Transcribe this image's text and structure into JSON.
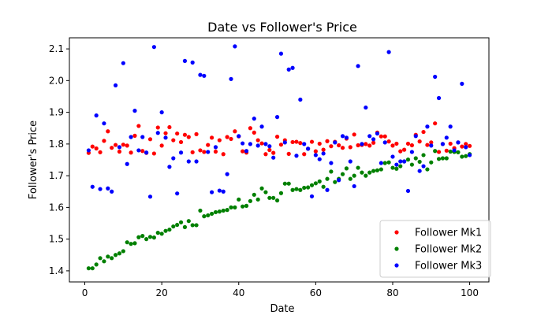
{
  "chart_data": {
    "type": "scatter",
    "title": "Date vs Follower's Price",
    "xlabel": "Date",
    "ylabel": "Follower's Price",
    "xlim": [
      -4,
      105
    ],
    "ylim": [
      1.365,
      2.135
    ],
    "xticks": [
      0,
      20,
      40,
      60,
      80,
      100
    ],
    "yticks": [
      1.4,
      1.5,
      1.6,
      1.7,
      1.8,
      1.9,
      2.0,
      2.1
    ],
    "ytick_labels": [
      "1.4",
      "1.5",
      "1.6",
      "1.7",
      "1.8",
      "1.9",
      "2.0",
      "2.1"
    ],
    "grid": false,
    "legend": "bottom-right",
    "x": [
      1,
      2,
      3,
      4,
      5,
      6,
      7,
      8,
      9,
      10,
      11,
      12,
      13,
      14,
      15,
      16,
      17,
      18,
      19,
      20,
      21,
      22,
      23,
      24,
      25,
      26,
      27,
      28,
      29,
      30,
      31,
      32,
      33,
      34,
      35,
      36,
      37,
      38,
      39,
      40,
      41,
      42,
      43,
      44,
      45,
      46,
      47,
      48,
      49,
      50,
      51,
      52,
      53,
      54,
      55,
      56,
      57,
      58,
      59,
      60,
      61,
      62,
      63,
      64,
      65,
      66,
      67,
      68,
      69,
      70,
      71,
      72,
      73,
      74,
      75,
      76,
      77,
      78,
      79,
      80,
      81,
      82,
      83,
      84,
      85,
      86,
      87,
      88,
      89,
      90,
      91,
      92,
      93,
      94,
      95,
      96,
      97,
      98,
      99,
      100
    ],
    "series": [
      {
        "name": "Follower Mk1",
        "color": "#ff0000",
        "values": [
          1.772,
          1.792,
          1.786,
          1.774,
          1.81,
          1.84,
          1.788,
          1.797,
          1.776,
          1.798,
          1.795,
          1.773,
          1.826,
          1.857,
          1.778,
          1.772,
          1.815,
          1.77,
          1.852,
          1.795,
          1.834,
          1.853,
          1.812,
          1.833,
          1.806,
          1.829,
          1.822,
          1.774,
          1.831,
          1.78,
          1.775,
          1.797,
          1.82,
          1.776,
          1.812,
          1.768,
          1.822,
          1.816,
          1.84,
          1.824,
          1.777,
          1.773,
          1.85,
          1.836,
          1.812,
          1.802,
          1.768,
          1.781,
          1.772,
          1.823,
          1.798,
          1.812,
          1.769,
          1.806,
          1.807,
          1.803,
          1.768,
          1.785,
          1.807,
          1.777,
          1.801,
          1.782,
          1.809,
          1.793,
          1.807,
          1.796,
          1.788,
          1.817,
          1.79,
          1.83,
          1.796,
          1.797,
          1.8,
          1.795,
          1.804,
          1.836,
          1.824,
          1.824,
          1.808,
          1.795,
          1.801,
          1.777,
          1.782,
          1.801,
          1.796,
          1.829,
          1.808,
          1.838,
          1.797,
          1.805,
          1.865,
          1.775,
          1.8,
          1.779,
          1.801,
          1.787,
          1.805,
          1.792,
          1.8,
          1.794
        ]
      },
      {
        "name": "Follower Mk2",
        "color": "#008000",
        "values": [
          1.408,
          1.408,
          1.42,
          1.44,
          1.43,
          1.445,
          1.44,
          1.45,
          1.455,
          1.462,
          1.49,
          1.485,
          1.487,
          1.506,
          1.51,
          1.5,
          1.507,
          1.505,
          1.52,
          1.517,
          1.526,
          1.53,
          1.54,
          1.545,
          1.553,
          1.538,
          1.557,
          1.544,
          1.544,
          1.59,
          1.572,
          1.575,
          1.58,
          1.585,
          1.587,
          1.59,
          1.592,
          1.6,
          1.6,
          1.625,
          1.603,
          1.605,
          1.62,
          1.64,
          1.625,
          1.66,
          1.648,
          1.63,
          1.63,
          1.622,
          1.645,
          1.675,
          1.675,
          1.655,
          1.658,
          1.655,
          1.662,
          1.663,
          1.67,
          1.676,
          1.682,
          1.665,
          1.69,
          1.713,
          1.68,
          1.69,
          1.705,
          1.723,
          1.69,
          1.7,
          1.725,
          1.71,
          1.7,
          1.71,
          1.715,
          1.717,
          1.72,
          1.74,
          1.742,
          1.725,
          1.722,
          1.73,
          1.745,
          1.751,
          1.735,
          1.755,
          1.744,
          1.765,
          1.72,
          1.742,
          1.778,
          1.753,
          1.755,
          1.755,
          1.776,
          1.775,
          1.774,
          1.76,
          1.762,
          1.768
        ]
      },
      {
        "name": "Follower Mk3",
        "color": "#0000ff",
        "values": [
          1.78,
          1.665,
          1.89,
          1.658,
          1.865,
          1.66,
          1.65,
          1.985,
          1.79,
          2.055,
          1.737,
          1.822,
          1.905,
          1.78,
          1.822,
          1.773,
          1.634,
          2.106,
          1.835,
          1.9,
          1.82,
          1.728,
          1.755,
          1.644,
          1.773,
          2.062,
          1.745,
          2.057,
          1.745,
          2.018,
          2.015,
          1.775,
          1.648,
          1.79,
          1.653,
          1.65,
          1.705,
          2.005,
          2.108,
          1.825,
          1.802,
          1.778,
          1.8,
          1.88,
          1.795,
          1.855,
          1.8,
          1.793,
          1.757,
          1.885,
          2.085,
          1.805,
          2.035,
          2.04,
          1.763,
          1.94,
          1.8,
          1.785,
          1.635,
          1.765,
          1.752,
          1.77,
          1.655,
          1.74,
          1.805,
          1.686,
          1.825,
          1.82,
          1.745,
          1.667,
          2.046,
          1.8,
          1.915,
          1.825,
          1.815,
          1.833,
          1.74,
          1.805,
          2.09,
          1.76,
          1.735,
          1.745,
          1.745,
          1.652,
          1.775,
          1.825,
          1.715,
          1.73,
          1.855,
          1.795,
          2.012,
          1.945,
          1.8,
          1.82,
          1.855,
          1.78,
          1.805,
          1.99,
          1.79,
          1.765
        ]
      }
    ]
  }
}
